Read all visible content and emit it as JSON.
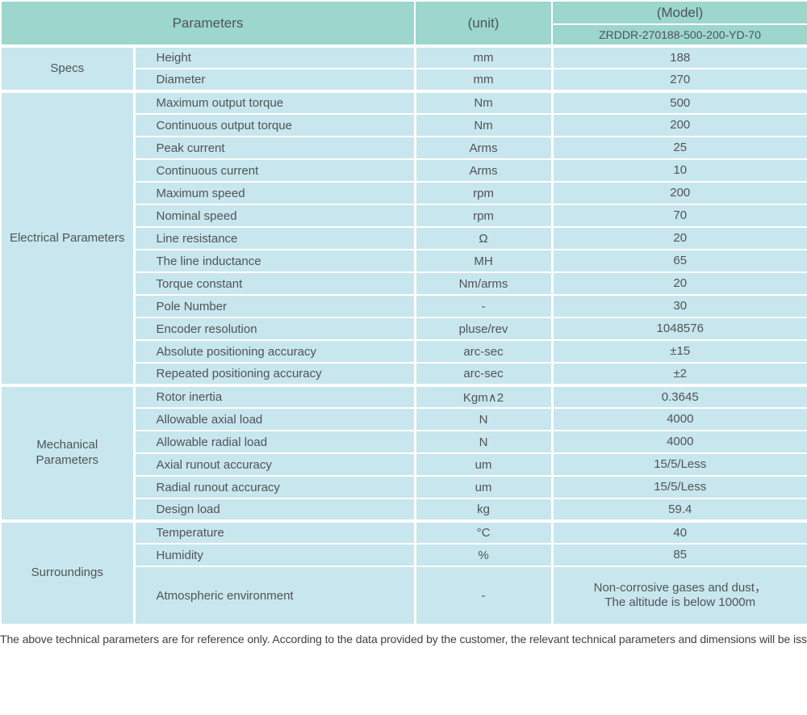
{
  "header": {
    "parameters_label": "Parameters",
    "unit_label": "(unit)",
    "model_label": "(Model)",
    "model_number": "ZRDDR-270188-500-200-YD-70"
  },
  "colors": {
    "header_bg": "#9cd6cd",
    "row_bg": "#c8e6ed",
    "border": "#ffffff",
    "text": "#4f5457"
  },
  "table": {
    "sections": [
      {
        "name": "Specs",
        "rows": [
          {
            "param": "Height",
            "unit": "mm",
            "value": "188"
          },
          {
            "param": "Diameter",
            "unit": "mm",
            "value": "270"
          }
        ]
      },
      {
        "name": "Electrical Parameters",
        "rows": [
          {
            "param": "Maximum output torque",
            "unit": "Nm",
            "value": "500"
          },
          {
            "param": "Continuous output torque",
            "unit": "Nm",
            "value": "200"
          },
          {
            "param": "Peak current",
            "unit": "Arms",
            "value": "25"
          },
          {
            "param": "Continuous current",
            "unit": "Arms",
            "value": "10"
          },
          {
            "param": "Maximum speed",
            "unit": "rpm",
            "value": "200"
          },
          {
            "param": "Nominal speed",
            "unit": "rpm",
            "value": "70"
          },
          {
            "param": "Line resistance",
            "unit": "Ω",
            "value": "20"
          },
          {
            "param": "The line inductance",
            "unit": "MH",
            "value": "65"
          },
          {
            "param": "Torque constant",
            "unit": "Nm/arms",
            "value": "20"
          },
          {
            "param": "Pole Number",
            "unit": "-",
            "value": "30"
          },
          {
            "param": "Encoder resolution",
            "unit": "pluse/rev",
            "value": "1048576"
          },
          {
            "param": "Absolute positioning accuracy",
            "unit": "arc-sec",
            "value": "±15"
          },
          {
            "param": "Repeated positioning accuracy",
            "unit": "arc-sec",
            "value": "±2"
          }
        ]
      },
      {
        "name": "Mechanical Parameters",
        "rows": [
          {
            "param": "Rotor inertia",
            "unit": "Kgm∧2",
            "value": "0.3645"
          },
          {
            "param": "Allowable axial load",
            "unit": "N",
            "value": "4000"
          },
          {
            "param": "Allowable radial load",
            "unit": "N",
            "value": "4000"
          },
          {
            "param": "Axial runout accuracy",
            "unit": "um",
            "value": "15/5/Less"
          },
          {
            "param": "Radial runout accuracy",
            "unit": "um",
            "value": "15/5/Less"
          },
          {
            "param": "Design load",
            "unit": "kg",
            "value": "59.4"
          }
        ]
      },
      {
        "name": "Surroundings",
        "rows": [
          {
            "param": "Temperature",
            "unit": "°C",
            "value": "40"
          },
          {
            "param": "Humidity",
            "unit": "%",
            "value": "85"
          },
          {
            "param": "Atmospheric environment",
            "unit": "-",
            "value": "Non-corrosive gases and dust，\nThe altitude is below 1000m",
            "tall": true
          }
        ]
      }
    ]
  },
  "footer": {
    "note": "The above technical parameters are for reference only. According to the data provided by the customer, the relevant technical parameters and dimensions will be issued."
  }
}
